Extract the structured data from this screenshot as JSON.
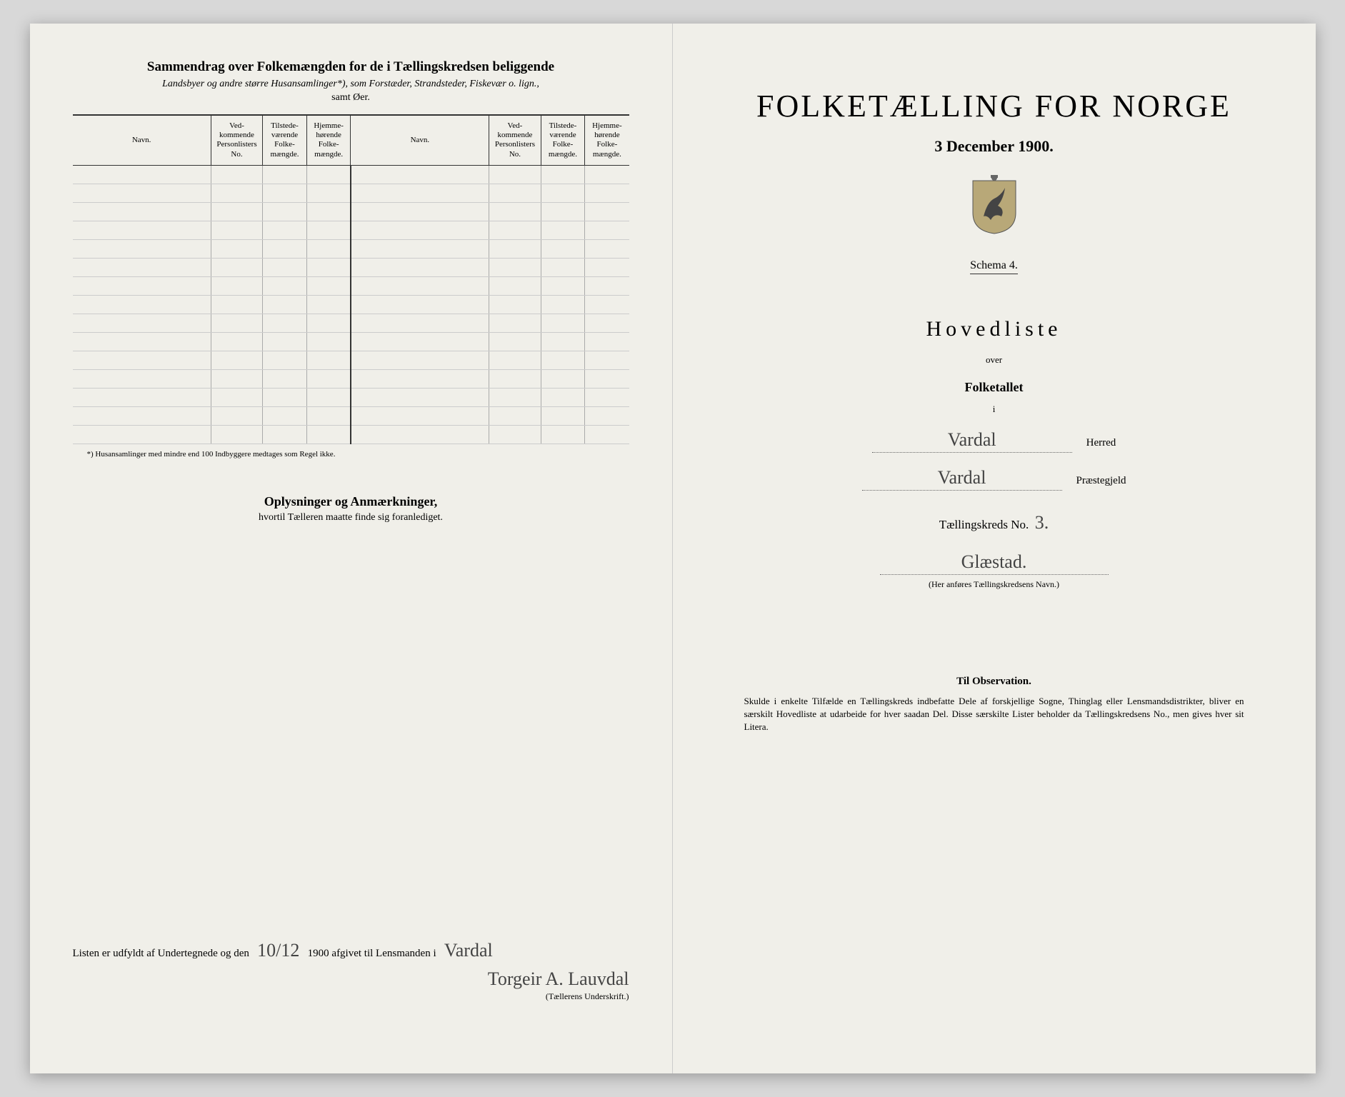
{
  "left": {
    "title": "Sammendrag over Folkemængden for de i Tællingskredsen beliggende",
    "subtitle": "Landsbyer og andre større Husansamlinger*), som Forstæder, Strandsteder, Fiskevær o. lign.,",
    "subtitle2": "samt Øer.",
    "table": {
      "headers": [
        "Navn.",
        "Ved-\nkommende\nPersonlisters\nNo.",
        "Tilstede-\nværende\nFolke-\nmængde.",
        "Hjemme-\nhørende\nFolke-\nmængde.",
        "Navn.",
        "Ved-\nkommende\nPersonlisters\nNo.",
        "Tilstede-\nværende\nFolke-\nmængde.",
        "Hjemme-\nhørende\nFolke-\nmængde."
      ],
      "rowCount": 15
    },
    "footnote": "*) Husansamlinger med mindre end 100 Indbyggere medtages som Regel ikke.",
    "remarksTitle": "Oplysninger og Anmærkninger,",
    "remarksSub": "hvortil Tælleren maatte finde sig foranlediget.",
    "signatureText1": "Listen er udfyldt af Undertegnede og den",
    "signatureDate": "10/12",
    "signatureText2": "1900 afgivet til Lensmanden i",
    "signaturePlace": "Vardal",
    "signatureName": "Torgeir A. Lauvdal",
    "signatureCaption": "(Tællerens Underskrift.)"
  },
  "right": {
    "mainTitle": "FOLKETÆLLING FOR NORGE",
    "date": "3 December 1900.",
    "schema": "Schema 4.",
    "hovedliste": "Hovedliste",
    "over": "over",
    "folketallet": "Folketallet",
    "i": "i",
    "herred": "Vardal",
    "herredLabel": "Herred",
    "praestegjeld": "Vardal",
    "praestegjeldLabel": "Præstegjeld",
    "kredsLabel": "Tællingskreds No.",
    "kredsNo": "3.",
    "kredsName": "Glæstad.",
    "kredsCaption": "(Her anføres Tællingskredsens Navn.)",
    "obsTitle": "Til Observation.",
    "obsText": "Skulde i enkelte Tilfælde en Tællingskreds indbefatte Dele af forskjellige Sogne, Thinglag eller Lensmandsdistrikter, bliver en særskilt Hovedliste at udarbeide for hver saadan Del. Disse særskilte Lister beholder da Tællingskredsens No., men gives hver sit Litera."
  }
}
